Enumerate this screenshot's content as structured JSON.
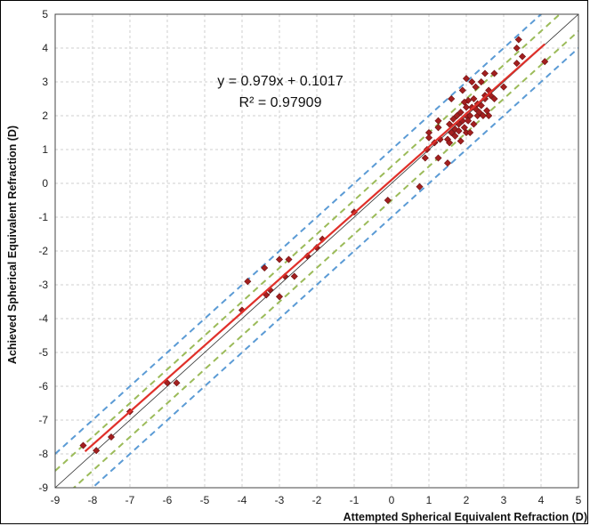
{
  "chart_data": {
    "type": "scatter",
    "xlabel": "Attempted Spherical Equivalent Refraction (D)",
    "ylabel": "Achieved Spherical Equivalent Refraction (D)",
    "xlim": [
      -9,
      5
    ],
    "ylim": [
      -9,
      5
    ],
    "xticks": [
      "-9",
      "-8",
      "-7",
      "-6",
      "-5",
      "-4",
      "-3",
      "-2",
      "-1",
      "0",
      "1",
      "2",
      "3",
      "4",
      "5"
    ],
    "yticks": [
      "5",
      "4",
      "3",
      "2",
      "1",
      "0",
      "-1",
      "-2",
      "-3",
      "-4",
      "-5",
      "-6",
      "-7",
      "-8",
      "-9"
    ],
    "grid": "dashed",
    "annotation": {
      "equation": "y = 0.979x + 0.1017",
      "r_squared": "R² = 0.97909"
    },
    "fit": {
      "slope": 0.979,
      "intercept": 0.1017,
      "x_range": [
        -8.2,
        4.1
      ],
      "color": "#e0302a"
    },
    "identity_line": {
      "color": "#333333"
    },
    "bands": [
      {
        "offset": 1.0,
        "color": "#5b9bd5",
        "style": "dashed"
      },
      {
        "offset": -1.0,
        "color": "#5b9bd5",
        "style": "dashed"
      },
      {
        "offset": 0.5,
        "color": "#9bbb59",
        "style": "dashed"
      },
      {
        "offset": -0.5,
        "color": "#9bbb59",
        "style": "dashed"
      }
    ],
    "marker_color": "#a31f1f",
    "points": [
      [
        -8.25,
        -7.75
      ],
      [
        -7.9,
        -7.9
      ],
      [
        -7.5,
        -7.5
      ],
      [
        -7.0,
        -6.75
      ],
      [
        -6.0,
        -5.9
      ],
      [
        -5.75,
        -5.9
      ],
      [
        -4.0,
        -3.75
      ],
      [
        -3.85,
        -2.9
      ],
      [
        -3.4,
        -2.5
      ],
      [
        -3.35,
        -3.3
      ],
      [
        -3.25,
        -3.15
      ],
      [
        -3.0,
        -2.25
      ],
      [
        -3.0,
        -3.35
      ],
      [
        -2.85,
        -2.75
      ],
      [
        -2.75,
        -2.25
      ],
      [
        -2.6,
        -2.75
      ],
      [
        -2.25,
        -2.15
      ],
      [
        -2.0,
        -1.9
      ],
      [
        -1.85,
        -1.65
      ],
      [
        -1.0,
        -0.85
      ],
      [
        -0.1,
        -0.5
      ],
      [
        0.75,
        -0.1
      ],
      [
        0.9,
        0.75
      ],
      [
        0.95,
        1.0
      ],
      [
        1.0,
        1.5
      ],
      [
        1.0,
        1.35
      ],
      [
        1.15,
        1.2
      ],
      [
        1.25,
        1.85
      ],
      [
        1.25,
        1.65
      ],
      [
        1.3,
        1.3
      ],
      [
        1.25,
        0.75
      ],
      [
        1.5,
        0.6
      ],
      [
        1.5,
        1.3
      ],
      [
        1.55,
        1.75
      ],
      [
        1.6,
        1.5
      ],
      [
        1.6,
        2.5
      ],
      [
        1.65,
        1.9
      ],
      [
        1.7,
        1.6
      ],
      [
        1.7,
        1.4
      ],
      [
        1.75,
        2.0
      ],
      [
        1.8,
        1.75
      ],
      [
        1.8,
        1.55
      ],
      [
        1.85,
        2.1
      ],
      [
        1.9,
        1.85
      ],
      [
        1.9,
        2.75
      ],
      [
        1.95,
        1.65
      ],
      [
        2.0,
        2.0
      ],
      [
        2.0,
        2.25
      ],
      [
        2.0,
        1.5
      ],
      [
        2.0,
        3.1
      ],
      [
        2.05,
        1.85
      ],
      [
        2.05,
        2.45
      ],
      [
        2.1,
        2.0
      ],
      [
        2.1,
        1.5
      ],
      [
        2.15,
        2.25
      ],
      [
        2.2,
        1.75
      ],
      [
        2.2,
        2.5
      ],
      [
        2.25,
        2.85
      ],
      [
        2.25,
        2.2
      ],
      [
        2.3,
        2.0
      ],
      [
        2.3,
        2.35
      ],
      [
        2.35,
        2.1
      ],
      [
        2.4,
        2.3
      ],
      [
        2.4,
        3.0
      ],
      [
        2.5,
        2.6
      ],
      [
        2.5,
        2.5
      ],
      [
        2.5,
        3.25
      ],
      [
        2.55,
        2.15
      ],
      [
        2.6,
        2.75
      ],
      [
        2.6,
        2.0
      ],
      [
        2.65,
        2.6
      ],
      [
        2.75,
        3.25
      ],
      [
        2.75,
        2.5
      ],
      [
        3.0,
        2.85
      ],
      [
        3.35,
        3.55
      ],
      [
        3.35,
        4.0
      ],
      [
        3.4,
        4.25
      ],
      [
        3.5,
        3.75
      ],
      [
        4.1,
        3.6
      ],
      [
        1.55,
        1.2
      ],
      [
        1.95,
        2.4
      ],
      [
        2.15,
        3.0
      ],
      [
        2.45,
        2.0
      ],
      [
        1.85,
        1.25
      ]
    ]
  }
}
